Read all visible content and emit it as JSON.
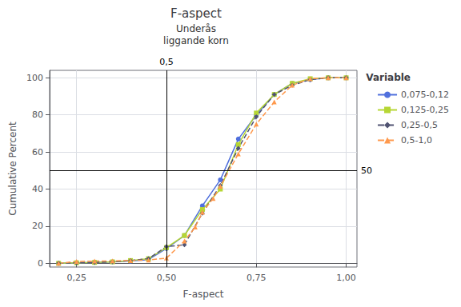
{
  "chart_data": {
    "type": "line",
    "title": "F-aspect",
    "subtitle": [
      "Underås",
      "liggande korn"
    ],
    "xlabel": "F-aspect",
    "ylabel": "Cumulative Percent",
    "xlim": [
      0.175,
      1.03
    ],
    "xticks": [
      {
        "value": 0.25,
        "label": "0,25"
      },
      {
        "value": 0.5,
        "label": "0,50"
      },
      {
        "value": 0.75,
        "label": "0,75"
      },
      {
        "value": 1.0,
        "label": "1,00"
      }
    ],
    "ylim": [
      -2,
      104
    ],
    "yticks": [
      0,
      20,
      40,
      60,
      80,
      100
    ],
    "grid": true,
    "legend": "right",
    "legend_title": "Variable",
    "reference_lines": [
      {
        "axis": "x",
        "value": 0.5,
        "label": "0,5"
      },
      {
        "axis": "y",
        "value": 50,
        "label": "50"
      }
    ],
    "series": [
      {
        "name": "0,075-0,12",
        "marker": "circle",
        "line_style": "solid",
        "x": [
          0.2,
          0.25,
          0.3,
          0.35,
          0.4,
          0.45,
          0.5,
          0.55,
          0.6,
          0.65,
          0.7,
          0.75,
          0.8,
          0.85,
          0.9,
          0.95,
          1.0
        ],
        "values": [
          0.0,
          0.3,
          0.5,
          0.8,
          1.2,
          2.0,
          8.0,
          15.0,
          31.0,
          45.0,
          67.0,
          80.0,
          91.0,
          97.0,
          99.0,
          100.0,
          100.0
        ]
      },
      {
        "name": "0,125-0,25",
        "marker": "square",
        "line_style": "solid",
        "x": [
          0.2,
          0.25,
          0.3,
          0.35,
          0.4,
          0.45,
          0.5,
          0.55,
          0.6,
          0.65,
          0.7,
          0.75,
          0.8,
          0.85,
          0.9,
          0.95,
          1.0
        ],
        "values": [
          0.0,
          0.3,
          0.5,
          0.8,
          1.5,
          2.5,
          8.5,
          15.0,
          29.0,
          40.0,
          64.0,
          81.0,
          91.0,
          97.0,
          99.5,
          100.0,
          100.0
        ]
      },
      {
        "name": "0,25-0,5",
        "marker": "diamond",
        "line_style": "dashed",
        "x": [
          0.2,
          0.25,
          0.3,
          0.35,
          0.4,
          0.45,
          0.5,
          0.55,
          0.6,
          0.65,
          0.7,
          0.75,
          0.8,
          0.85,
          0.9,
          0.95,
          1.0
        ],
        "values": [
          0.0,
          0.3,
          0.5,
          0.8,
          1.5,
          2.5,
          9.0,
          10.0,
          27.0,
          42.0,
          62.0,
          79.0,
          91.0,
          96.0,
          99.0,
          100.0,
          100.0
        ]
      },
      {
        "name": "0,5-1,0",
        "marker": "triangle",
        "line_style": "dashed",
        "x": [
          0.2,
          0.25,
          0.3,
          0.35,
          0.4,
          0.45,
          0.5,
          0.55,
          0.58,
          0.6,
          0.63,
          0.65,
          0.7,
          0.75,
          0.8,
          0.85,
          0.9,
          0.95,
          1.0
        ],
        "values": [
          0.0,
          1.0,
          1.2,
          1.3,
          1.5,
          1.8,
          2.8,
          12.0,
          19.5,
          27.5,
          35.0,
          41.5,
          59.0,
          75.0,
          87.0,
          96.0,
          99.5,
          100.0,
          100.0
        ]
      }
    ]
  }
}
